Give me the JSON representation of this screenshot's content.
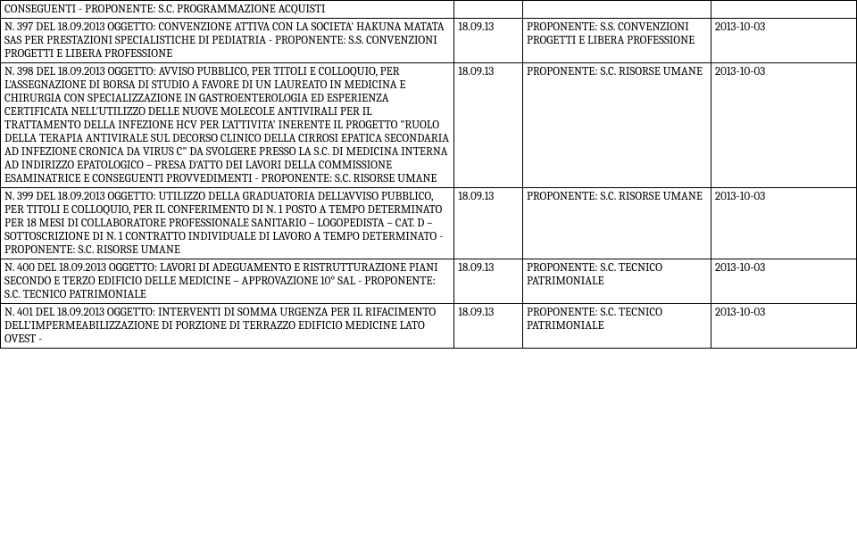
{
  "table": {
    "columns": [
      "oggetto",
      "data",
      "proponente",
      "pubblicazione"
    ],
    "col_widths_pct": [
      53,
      8,
      22,
      17
    ],
    "font_family": "Cambria",
    "font_size_pt": 10,
    "border_color": "#000000",
    "background_color": "#ffffff",
    "rows": [
      {
        "oggetto": "CONSEGUENTI - PROPONENTE: S.C. PROGRAMMAZIONE ACQUISTI",
        "data": "",
        "proponente": "",
        "pubblicazione": ""
      },
      {
        "oggetto": "N. 397 DEL 18.09.2013 OGGETTO: CONVENZIONE ATTIVA CON LA SOCIETA' HAKUNA MATATA SAS PER PRESTAZIONI SPECIALISTICHE DI PEDIATRIA - PROPONENTE: S.S. CONVENZIONI PROGETTI E LIBERA PROFESSIONE",
        "data": "18.09.13",
        "proponente": "PROPONENTE: S.S. CONVENZIONI PROGETTI E LIBERA PROFESSIONE",
        "pubblicazione": "2013-10-03"
      },
      {
        "oggetto": "N. 398 DEL 18.09.2013 OGGETTO: AVVISO PUBBLICO, PER TITOLI E COLLOQUIO, PER L'ASSEGNAZIONE DI BORSA DI STUDIO A FAVORE DI UN LAUREATO IN MEDICINA E CHIRURGIA CON SPECIALIZZAZIONE IN GASTROENTEROLOGIA ED ESPERIENZA CERTIFICATA NELL'UTILIZZO DELLE NUOVE MOLECOLE ANTIVIRALI PER IL TRATTAMENTO DELLA INFEZIONE HCV PER L'ATTIVITA' INERENTE IL PROGETTO \"RUOLO DELLA TERAPIA ANTIVIRALE SUL DECORSO CLINICO DELLA CIRROSI EPATICA SECONDARIA AD INFEZIONE CRONICA DA VIRUS C\" DA SVOLGERE PRESSO LA S.C. DI MEDICINA INTERNA AD INDIRIZZO EPATOLOGICO – PRESA D'ATTO DEI LAVORI DELLA COMMISSIONE ESAMINATRICE E CONSEGUENTI PROVVEDIMENTI - PROPONENTE: S.C. RISORSE UMANE",
        "data": "18.09.13",
        "proponente": "PROPONENTE: S.C. RISORSE UMANE",
        "pubblicazione": "2013-10-03"
      },
      {
        "oggetto": "N. 399 DEL 18.09.2013 OGGETTO: UTILIZZO DELLA GRADUATORIA DELL'AVVISO PUBBLICO, PER TITOLI E COLLOQUIO, PER IL CONFERIMENTO DI N. 1 POSTO A TEMPO DETERMINATO PER 18 MESI DI COLLABORATORE PROFESSIONALE SANITARIO – LOGOPEDISTA – CAT. D – SOTTOSCRIZIONE DI N. 1 CONTRATTO INDIVIDUALE DI LAVORO A TEMPO DETERMINATO - PROPONENTE: S.C. RISORSE UMANE",
        "data": "18.09.13",
        "proponente": "PROPONENTE: S.C. RISORSE UMANE",
        "pubblicazione": "2013-10-03"
      },
      {
        "oggetto": "N. 400 DEL 18.09.2013 OGGETTO: LAVORI DI ADEGUAMENTO E RISTRUTTURAZIONE PIANI SECONDO E TERZO EDIFICIO DELLE MEDICINE – APPROVAZIONE 10° SAL - PROPONENTE: S.C. TECNICO PATRIMONIALE",
        "data": "18.09.13",
        "proponente": "PROPONENTE: S.C. TECNICO PATRIMONIALE",
        "pubblicazione": "2013-10-03"
      },
      {
        "oggetto": "N. 401 DEL 18.09.2013 OGGETTO: INTERVENTI DI SOMMA URGENZA PER IL RIFACIMENTO DELL'IMPERMEABILIZZAZIONE DI PORZIONE DI TERRAZZO EDIFICIO MEDICINE LATO OVEST -",
        "data": "18.09.13",
        "proponente": "PROPONENTE: S.C. TECNICO PATRIMONIALE",
        "pubblicazione": "2013-10-03"
      }
    ]
  }
}
